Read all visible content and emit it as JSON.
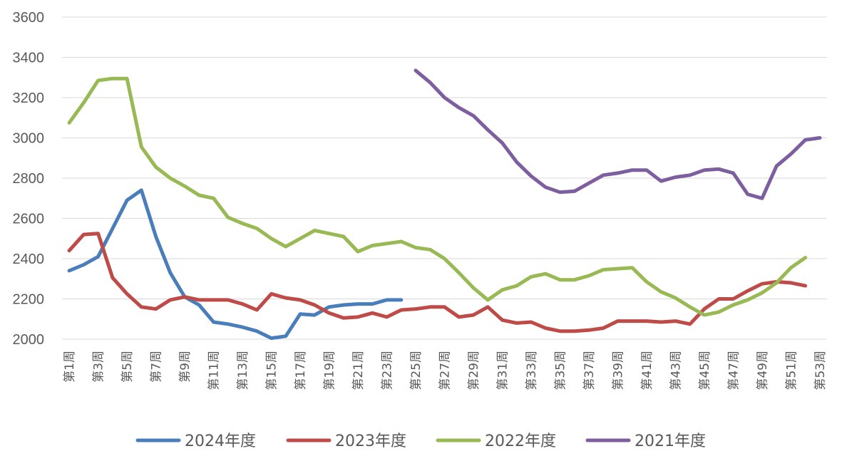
{
  "chart_data": {
    "type": "line",
    "ylim": [
      2000,
      3600
    ],
    "yticks": [
      2000,
      2200,
      2400,
      2600,
      2800,
      3000,
      3200,
      3400,
      3600
    ],
    "grid": true,
    "legend_position": "bottom",
    "x": [
      "第1周",
      "第2周",
      "第3周",
      "第4周",
      "第5周",
      "第6周",
      "第7周",
      "第8周",
      "第9周",
      "第10周",
      "第11周",
      "第12周",
      "第13周",
      "第14周",
      "第15周",
      "第16周",
      "第17周",
      "第18周",
      "第19周",
      "第20周",
      "第21周",
      "第22周",
      "第23周",
      "第24周",
      "第25周",
      "第26周",
      "第27周",
      "第28周",
      "第29周",
      "第30周",
      "第31周",
      "第32周",
      "第33周",
      "第34周",
      "第35周",
      "第36周",
      "第37周",
      "第38周",
      "第39周",
      "第40周",
      "第41周",
      "第42周",
      "第43周",
      "第44周",
      "第45周",
      "第46周",
      "第47周",
      "第48周",
      "第49周",
      "第50周",
      "第51周",
      "第52周",
      "第53周"
    ],
    "xtick_labels": [
      "第1周",
      "第3周",
      "第5周",
      "第7周",
      "第9周",
      "第11周",
      "第13周",
      "第15周",
      "第17周",
      "第19周",
      "第21周",
      "第23周",
      "第25周",
      "第27周",
      "第29周",
      "第31周",
      "第33周",
      "第35周",
      "第37周",
      "第39周",
      "第41周",
      "第43周",
      "第45周",
      "第47周",
      "第49周",
      "第51周",
      "第53周"
    ],
    "series": [
      {
        "name": "2024年度",
        "color": "#4a7ebb",
        "values": [
          2340,
          2370,
          2410,
          2550,
          2690,
          2740,
          2510,
          2330,
          2210,
          2170,
          2085,
          2075,
          2060,
          2040,
          2005,
          2015,
          2125,
          2120,
          2160,
          2170,
          2175,
          2175,
          2195,
          2195,
          null,
          null,
          null,
          null,
          null,
          null,
          null,
          null,
          null,
          null,
          null,
          null,
          null,
          null,
          null,
          null,
          null,
          null,
          null,
          null,
          null,
          null,
          null,
          null,
          null,
          null,
          null,
          null,
          null
        ]
      },
      {
        "name": "2023年度",
        "color": "#be4b48",
        "values": [
          2440,
          2520,
          2525,
          2305,
          2225,
          2160,
          2150,
          2195,
          2210,
          2195,
          2195,
          2195,
          2175,
          2145,
          2225,
          2205,
          2195,
          2170,
          2130,
          2105,
          2110,
          2130,
          2110,
          2145,
          2150,
          2160,
          2160,
          2110,
          2120,
          2160,
          2095,
          2080,
          2085,
          2055,
          2040,
          2040,
          2045,
          2055,
          2090,
          2090,
          2090,
          2085,
          2090,
          2075,
          2150,
          2200,
          2200,
          2240,
          2275,
          2285,
          2280,
          2265,
          null
        ]
      },
      {
        "name": "2022年度",
        "color": "#98b954",
        "values": [
          3075,
          3175,
          3285,
          3295,
          3295,
          2955,
          2855,
          2800,
          2760,
          2715,
          2700,
          2605,
          2575,
          2550,
          2500,
          2460,
          2500,
          2540,
          2525,
          2510,
          2435,
          2465,
          2475,
          2485,
          2455,
          2445,
          2400,
          2330,
          2255,
          2195,
          2245,
          2265,
          2310,
          2325,
          2295,
          2295,
          2315,
          2345,
          2350,
          2355,
          2285,
          2235,
          2205,
          2160,
          2120,
          2135,
          2170,
          2195,
          2230,
          2280,
          2355,
          2405,
          null
        ]
      },
      {
        "name": "2021年度",
        "color": "#7d5fa0",
        "values": [
          null,
          null,
          null,
          null,
          null,
          null,
          null,
          null,
          null,
          null,
          null,
          null,
          null,
          null,
          null,
          null,
          null,
          null,
          null,
          null,
          null,
          null,
          null,
          null,
          3335,
          3275,
          3200,
          3150,
          3110,
          3040,
          2975,
          2880,
          2810,
          2755,
          2730,
          2735,
          2775,
          2815,
          2825,
          2840,
          2840,
          2785,
          2805,
          2815,
          2840,
          2845,
          2825,
          2720,
          2700,
          2860,
          2920,
          2990,
          3000
        ]
      }
    ]
  }
}
